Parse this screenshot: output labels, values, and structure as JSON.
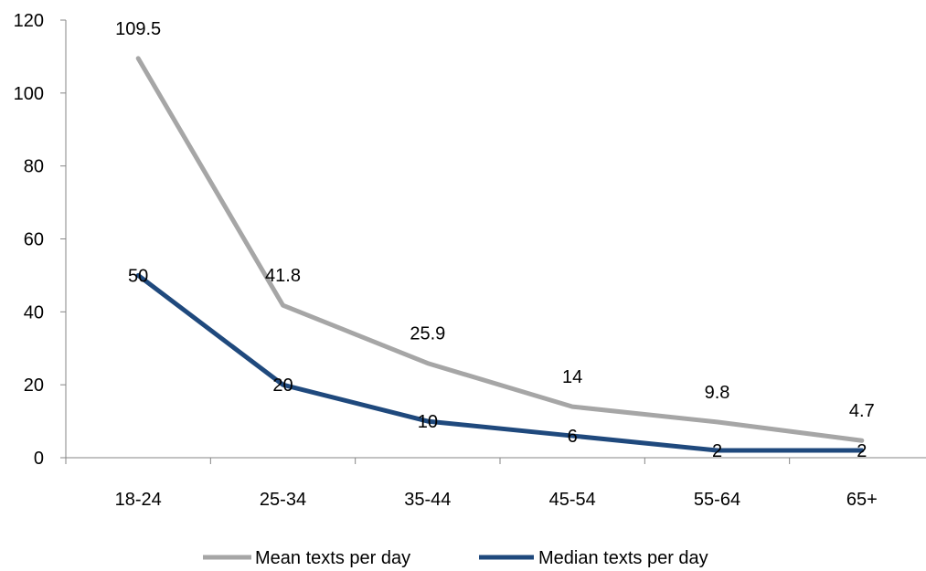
{
  "chart_data": {
    "type": "line",
    "categories": [
      "18-24",
      "25-34",
      "35-44",
      "45-54",
      "55-64",
      "65+"
    ],
    "series": [
      {
        "name": "Mean texts per day",
        "values": [
          109.5,
          41.8,
          25.9,
          14,
          9.8,
          4.7
        ],
        "labels": [
          "109.5",
          "41.8",
          "25.9",
          "14",
          "9.8",
          "4.7"
        ],
        "color": "#A6A6A6"
      },
      {
        "name": "Median texts per day",
        "values": [
          50,
          20,
          10,
          6,
          2,
          2
        ],
        "labels": [
          "50",
          "20",
          "10",
          "6",
          "2",
          "2"
        ],
        "color": "#1F497D"
      }
    ],
    "y_ticks": [
      0,
      20,
      40,
      60,
      80,
      100,
      120
    ],
    "ylim": [
      0,
      120
    ],
    "grid": false,
    "legend_position": "bottom",
    "title": "",
    "xlabel": "",
    "ylabel": ""
  }
}
